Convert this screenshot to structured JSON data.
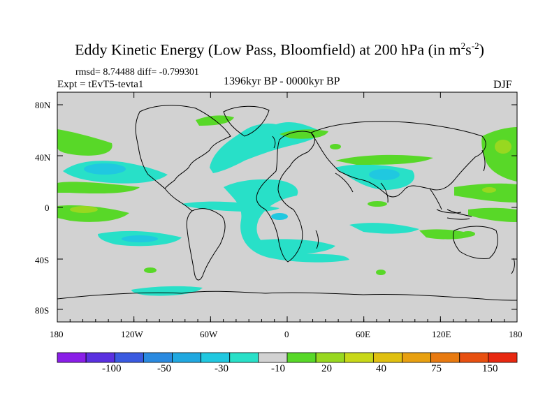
{
  "title": {
    "main": "Eddy Kinetic Energy (Low Pass, Bloomfield) at 200 hPa (in m",
    "sup1": "2",
    "mid": "s",
    "sup2": "-2",
    "end": ")"
  },
  "stats": "rmsd= 8.74488  diff= -0.799301",
  "expt": "Expt = tEvT5-tevta1",
  "period": "1396kyr BP - 0000kyr BP",
  "season": "DJF",
  "lat_labels": [
    "80N",
    "40N",
    "0",
    "40S",
    "80S"
  ],
  "lon_labels": [
    "180",
    "120W",
    "60W",
    "0",
    "60E",
    "120E",
    "180"
  ],
  "colorbar": {
    "labels": [
      "-100",
      "-50",
      "-30",
      "-10",
      "20",
      "40",
      "75",
      "150"
    ],
    "colors": [
      "#8a1ee8",
      "#5a30e0",
      "#3a5ae0",
      "#2a8ae0",
      "#20a8e0",
      "#20c8e0",
      "#28e0c8",
      "#d2d2d2",
      "#58d828",
      "#98d820",
      "#c8d818",
      "#e0c010",
      "#e8a010",
      "#e87a10",
      "#e85010",
      "#e82810"
    ]
  },
  "map_colors": {
    "background": "#d2d2d2",
    "green": "#58d828",
    "light_green": "#98d820",
    "cyan": "#28e0c8",
    "light_blue": "#20c8e0",
    "blue": "#20a8e0"
  }
}
